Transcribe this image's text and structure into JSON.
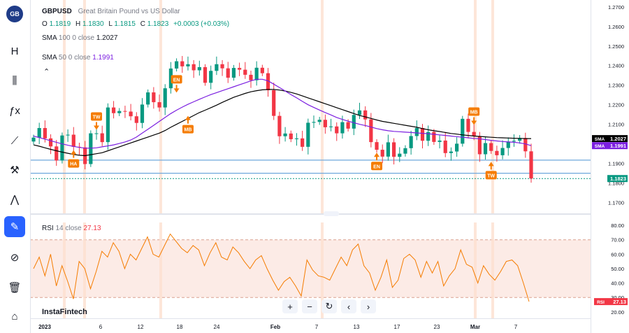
{
  "header": {
    "symbol": "GBPUSD",
    "description": "Great Britain Pound vs US Dollar",
    "o_label": "O",
    "o": "1.1819",
    "h_label": "H",
    "h": "1.1830",
    "l_label": "L",
    "l": "1.1815",
    "c_label": "C",
    "c": "1.1823",
    "change": "+0.0003 (+0.03%)"
  },
  "indicators": [
    {
      "name": "SMA",
      "params": "100 0 close",
      "value": "1.2027",
      "color": "#000000"
    },
    {
      "name": "SMA",
      "params": "50 0 close",
      "value": "1.1991",
      "color": "#7b1fe0"
    }
  ],
  "rsi_legend": {
    "name": "RSI",
    "params": "14 close",
    "value": "27.13"
  },
  "watermark": "InstaFintech",
  "toolbar": [
    "gbp-flag-icon",
    "text-h-icon",
    "candles-icon",
    "fx-icon",
    "line-tool-icon",
    "measure-icon",
    "pattern-icon",
    "brush-icon",
    "eye-slash-icon",
    "trash-icon",
    "lock-icon"
  ],
  "colors": {
    "up": "#089981",
    "down": "#f23645",
    "sma100": "#000000",
    "sma50": "#7b1fe0",
    "rsi": "#f57c00",
    "hline": "#6fa8dc",
    "marker": "#f57c00"
  },
  "chart_data": [
    {
      "type": "candlestick",
      "title": "GBPUSD",
      "subtitle": "Great Britain Pound vs US Dollar",
      "x_ticks": [
        "2023",
        "6",
        "12",
        "18",
        "24",
        "Feb",
        "7",
        "13",
        "17",
        "23",
        "Mar",
        "7"
      ],
      "y_ticks": [
        "1.2700",
        "1.2600",
        "1.2500",
        "1.2400",
        "1.2300",
        "1.2200",
        "1.2100",
        "1.1900",
        "1.1800",
        "1.1700"
      ],
      "ylim": [
        1.1645,
        1.2735
      ],
      "close": [
        1.2032,
        1.2081,
        1.2028,
        1.1987,
        1.1915,
        1.2043,
        1.2047,
        1.1985,
        1.1982,
        1.1897,
        1.2054,
        1.2054,
        1.2009,
        1.2186,
        1.2157,
        1.2168,
        1.2165,
        1.2141,
        1.2107,
        1.2201,
        1.2263,
        1.2213,
        1.2186,
        1.2284,
        1.2385,
        1.2422,
        1.2396,
        1.2407,
        1.2376,
        1.2392,
        1.2312,
        1.2373,
        1.2407,
        1.2386,
        1.2338,
        1.2388,
        1.2379,
        1.2353,
        1.2325,
        1.2389,
        1.2361,
        1.2274,
        1.2143,
        1.2039,
        1.2053,
        1.2024,
        1.2028,
        1.1985,
        1.2108,
        1.2112,
        1.2123,
        1.2085,
        1.2089,
        1.2054,
        1.2111,
        1.2078,
        1.2148,
        1.2171,
        1.2125,
        1.2009,
        1.197,
        1.1935,
        1.2008,
        1.1934,
        1.195,
        1.1978,
        1.204,
        1.2081,
        1.2016,
        1.2061,
        1.201,
        1.2017,
        1.1953,
        1.1961,
        1.2001,
        1.2128,
        1.2061,
        1.204,
        1.1947,
        1.2004,
        1.1964,
        1.1942,
        1.1979,
        1.2012,
        1.2016,
        1.203,
        1.1962,
        1.1823
      ],
      "sma100": [
        1.1995,
        1.1988,
        1.198,
        1.1972,
        1.1965,
        1.1958,
        1.1952,
        1.1946,
        1.1942,
        1.194,
        1.1945,
        1.195,
        1.1955,
        1.1965,
        1.1975,
        1.1985,
        1.1995,
        1.2005,
        1.2015,
        1.2025,
        1.2035,
        1.2045,
        1.2055,
        1.2068,
        1.2085,
        1.21,
        1.2115,
        1.213,
        1.2145,
        1.216,
        1.2172,
        1.2185,
        1.2198,
        1.2212,
        1.2225,
        1.2238,
        1.2248,
        1.2258,
        1.2266,
        1.2272,
        1.2276,
        1.2278,
        1.2278,
        1.2275,
        1.227,
        1.2263,
        1.2255,
        1.2245,
        1.2235,
        1.2225,
        1.2215,
        1.2205,
        1.2195,
        1.2185,
        1.2175,
        1.2165,
        1.2155,
        1.2145,
        1.2138,
        1.213,
        1.2122,
        1.2115,
        1.211,
        1.2105,
        1.21,
        1.2095,
        1.209,
        1.2085,
        1.2078,
        1.2072,
        1.2067,
        1.2063,
        1.2058,
        1.2053,
        1.205,
        1.2046,
        1.2043,
        1.204,
        1.2038,
        1.2036,
        1.2034,
        1.2032,
        1.2031,
        1.203,
        1.2029,
        1.2028,
        1.2027,
        1.2027
      ],
      "sma50": [
        1.204,
        1.2032,
        1.2024,
        1.2016,
        1.2008,
        1.2,
        1.1993,
        1.1987,
        1.1982,
        1.1978,
        1.1978,
        1.198,
        1.1985,
        1.199,
        1.1995,
        1.2002,
        1.201,
        1.202,
        1.2035,
        1.2055,
        1.2075,
        1.2095,
        1.2115,
        1.2135,
        1.2155,
        1.2172,
        1.2188,
        1.2202,
        1.2215,
        1.2228,
        1.224,
        1.2252,
        1.2262,
        1.2272,
        1.2282,
        1.2292,
        1.2302,
        1.2312,
        1.2322,
        1.233,
        1.233,
        1.2322,
        1.2305,
        1.2288,
        1.227,
        1.2252,
        1.2235,
        1.2217,
        1.22,
        1.2186,
        1.2173,
        1.216,
        1.2148,
        1.2135,
        1.2125,
        1.2116,
        1.2108,
        1.21,
        1.2094,
        1.2086,
        1.2078,
        1.2072,
        1.2067,
        1.2064,
        1.2062,
        1.206,
        1.2058,
        1.2056,
        1.2054,
        1.2052,
        1.2049,
        1.2046,
        1.2043,
        1.204,
        1.2037,
        1.2034,
        1.2031,
        1.2028,
        1.2026,
        1.2022,
        1.2018,
        1.2015,
        1.2012,
        1.201,
        1.2008,
        1.2005,
        1.2,
        1.1991
      ],
      "price_labels": [
        {
          "name": "SMA",
          "value": "1.2027"
        },
        {
          "name": "SMA",
          "value": "1.1991"
        },
        {
          "name": "",
          "value": "1.1823"
        }
      ],
      "horizontal_lines": [
        1.1917,
        1.185
      ],
      "markers": [
        {
          "label": "HA",
          "i": 7,
          "price": 1.19,
          "dir": "up"
        },
        {
          "label": "TW",
          "i": 11,
          "price": 1.214,
          "dir": "down"
        },
        {
          "label": "EN",
          "i": 25,
          "price": 1.233,
          "dir": "down"
        },
        {
          "label": "MB",
          "i": 27,
          "price": 1.2075,
          "dir": "up"
        },
        {
          "label": "EN",
          "i": 60,
          "price": 1.1887,
          "dir": "up"
        },
        {
          "label": "MB",
          "i": 77,
          "price": 1.2165,
          "dir": "down"
        },
        {
          "label": "TW",
          "i": 80,
          "price": 1.184,
          "dir": "up"
        }
      ]
    },
    {
      "type": "line",
      "title": "RSI",
      "subtitle": "14 close",
      "y_ticks": [
        "80.00",
        "70.00",
        "60.00",
        "50.00",
        "40.00",
        "30.00",
        "20.00"
      ],
      "ylim": [
        17,
        82
      ],
      "bands": [
        30,
        70
      ],
      "values": [
        50,
        58,
        45,
        60,
        38,
        52,
        41,
        29,
        55,
        50,
        36,
        48,
        62,
        58,
        68,
        62,
        50,
        60,
        56,
        64,
        72,
        60,
        58,
        66,
        74,
        69,
        64,
        61,
        66,
        63,
        52,
        61,
        68,
        58,
        56,
        65,
        61,
        55,
        50,
        56,
        59,
        50,
        42,
        35,
        41,
        44,
        38,
        31,
        56,
        49,
        45,
        44,
        42,
        50,
        58,
        52,
        63,
        67,
        52,
        47,
        35,
        44,
        56,
        37,
        42,
        57,
        60,
        56,
        44,
        55,
        47,
        55,
        38,
        45,
        50,
        63,
        53,
        51,
        40,
        52,
        46,
        42,
        48,
        55,
        56,
        52,
        40,
        27.13
      ]
    }
  ]
}
